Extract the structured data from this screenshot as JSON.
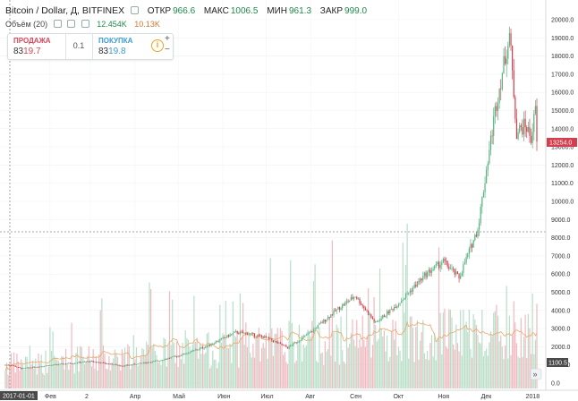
{
  "header": {
    "title": "Bitcoin / Dollar, Д, BITFINEX",
    "ohlc": [
      {
        "label": "ОТКР",
        "value": "966.6"
      },
      {
        "label": "МАКС",
        "value": "1006.5"
      },
      {
        "label": "МИН",
        "value": "961.3"
      },
      {
        "label": "ЗАКР",
        "value": "999.0"
      }
    ]
  },
  "volume_legend": {
    "label": "Объём (20)",
    "value1": "12.454K",
    "value2": "10.13K"
  },
  "trade_panel": {
    "sell_label": "ПРОДАЖА",
    "sell_price_prefix": "83",
    "sell_price_big": "19.7",
    "spread": "0.1",
    "buy_label": "ПОКУПКА",
    "buy_price_prefix": "83",
    "buy_price_big": "19.8",
    "info_symbol": "i",
    "plus": "+",
    "minus": "−"
  },
  "axes": {
    "price_ticks": [
      "20000.0",
      "19000.0",
      "18000.0",
      "17000.0",
      "16000.0",
      "15000.0",
      "14000.0",
      "13000.0",
      "12000.0",
      "11000.0",
      "10000.0",
      "9000.0",
      "8000.0",
      "7000.0",
      "6000.0",
      "5000.0",
      "4000.0",
      "3000.0",
      "2000.0",
      "1000.0",
      "0.0"
    ],
    "x_ticks": [
      "2017-01-01",
      "Фев",
      "2",
      "Апр",
      "Май",
      "Июн",
      "Июл",
      "Авг",
      "Сен",
      "Окт",
      "Ноя",
      "Дек",
      "2018"
    ],
    "current_price_label": "13254.0",
    "crosshair_price_label": "1100.5",
    "scroll_icon": "»"
  },
  "colors": {
    "up": "#55b480",
    "down": "#d33f4e",
    "vol_up": "#b9dec8",
    "vol_down": "#f1b9c0",
    "crosshair": "#8a8a8a",
    "ma": "#e9a86a"
  },
  "chart_data": {
    "type": "candlestick",
    "title": "Bitcoin / Dollar, Д, BITFINEX",
    "period": "1D",
    "xrange": [
      "2017-01-01",
      "2018-01-05"
    ],
    "ylim": [
      0,
      20000
    ],
    "checkpoints": [
      {
        "date": "2017-01-01",
        "close": 999
      },
      {
        "date": "2017-01-05",
        "close": 1000
      },
      {
        "date": "2017-01-12",
        "close": 800
      },
      {
        "date": "2017-02-01",
        "close": 980
      },
      {
        "date": "2017-03-01",
        "close": 1200
      },
      {
        "date": "2017-03-10",
        "close": 1100
      },
      {
        "date": "2017-03-24",
        "close": 950
      },
      {
        "date": "2017-04-15",
        "close": 1200
      },
      {
        "date": "2017-05-01",
        "close": 1500
      },
      {
        "date": "2017-05-20",
        "close": 2000
      },
      {
        "date": "2017-06-10",
        "close": 2800
      },
      {
        "date": "2017-06-20",
        "close": 2700
      },
      {
        "date": "2017-07-01",
        "close": 2500
      },
      {
        "date": "2017-07-16",
        "close": 1950
      },
      {
        "date": "2017-08-01",
        "close": 2800
      },
      {
        "date": "2017-08-20",
        "close": 4100
      },
      {
        "date": "2017-09-01",
        "close": 4800
      },
      {
        "date": "2017-09-15",
        "close": 3300
      },
      {
        "date": "2017-10-01",
        "close": 4400
      },
      {
        "date": "2017-10-20",
        "close": 6000
      },
      {
        "date": "2017-11-01",
        "close": 6700
      },
      {
        "date": "2017-11-12",
        "close": 5800
      },
      {
        "date": "2017-11-25",
        "close": 8500
      },
      {
        "date": "2017-12-07",
        "close": 15000
      },
      {
        "date": "2017-12-17",
        "close": 19200
      },
      {
        "date": "2017-12-22",
        "close": 13800
      },
      {
        "date": "2017-12-28",
        "close": 14200
      },
      {
        "date": "2018-01-01",
        "close": 13500
      },
      {
        "date": "2018-01-04",
        "close": 15000
      },
      {
        "date": "2018-01-05",
        "close": 13254
      }
    ],
    "volume_ylim": [
      0,
      25000
    ]
  }
}
